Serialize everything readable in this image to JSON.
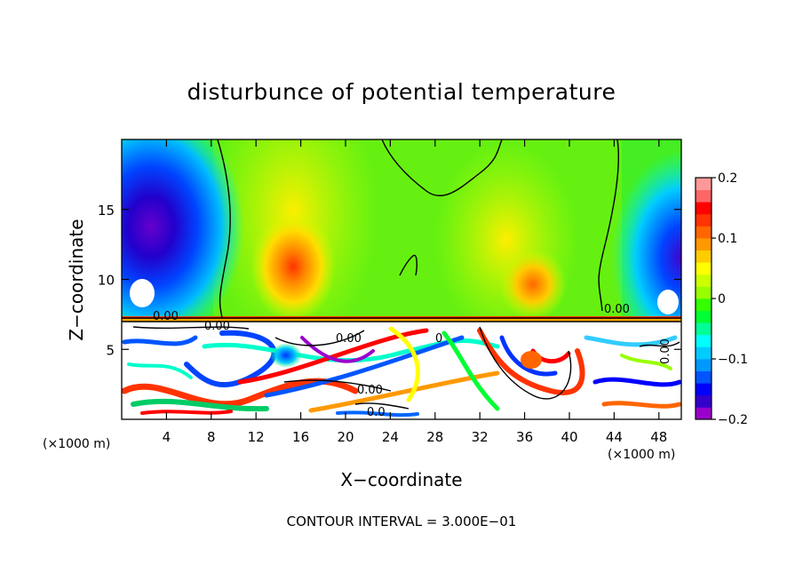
{
  "chart_data": {
    "type": "heatmap",
    "title": "disturbunce of potential temperature",
    "xlabel": "X−coordinate",
    "ylabel": "Z−coordinate",
    "x_unit": "(×1000 m)",
    "x_unit_right": "(×1000 m)",
    "xlim": [
      0,
      50
    ],
    "ylim": [
      0,
      20
    ],
    "x_ticks": [
      4,
      8,
      12,
      16,
      20,
      24,
      28,
      32,
      36,
      40,
      44,
      48
    ],
    "x_tick_labels": [
      "4",
      "8",
      "12",
      "16",
      "20",
      "24",
      "28",
      "32",
      "36",
      "40",
      "44",
      "48"
    ],
    "y_ticks": [
      5,
      10,
      15
    ],
    "y_tick_labels": [
      "5",
      "10",
      "15"
    ],
    "colorbar": {
      "min": -0.2,
      "max": 0.2,
      "ticks": [
        0.2,
        0.1,
        0,
        -0.1,
        -0.2
      ],
      "tick_labels": [
        "0.2",
        "0.1",
        "0",
        "−0.1",
        "−0.2"
      ],
      "colors": [
        "#9900cc",
        "#3300cc",
        "#0000ff",
        "#0055ff",
        "#0099ff",
        "#00ccff",
        "#00ffff",
        "#00ff99",
        "#00ff33",
        "#33ff00",
        "#99ff00",
        "#ccff00",
        "#ffff00",
        "#ffcc00",
        "#ff9900",
        "#ff6600",
        "#ff3300",
        "#ff0000",
        "#ff6666",
        "#ff9999"
      ]
    },
    "contour_labels": [
      "0.00",
      "0.00",
      "0.00",
      "0.00",
      "0.0",
      "0",
      "0.00",
      "0.00"
    ],
    "annotation": "CONTOUR INTERVAL = 3.000E−01",
    "grid": false,
    "legend": "colorbar-right"
  }
}
